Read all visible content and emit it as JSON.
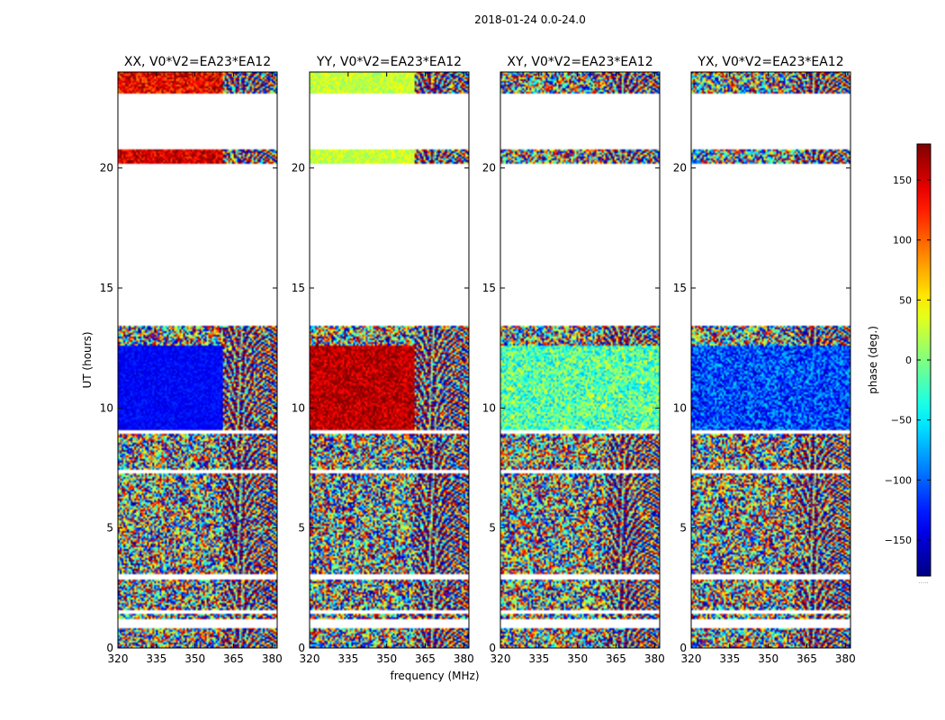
{
  "figure": {
    "suptitle": "2018-01-24 0.0-24.0",
    "xlabel": "frequency (MHz)",
    "ylabel": "UT (hours)",
    "colorbar_label": "phase (deg.)",
    "colorbar_footer": "....."
  },
  "chart_data": {
    "type": "heatmap",
    "colormap": "jet",
    "value_range": [
      -180,
      180
    ],
    "colorbar_ticks": [
      -150,
      -100,
      -50,
      0,
      50,
      100,
      150
    ],
    "colorbar_tick_labels": [
      "−150",
      "−100",
      "−50",
      "0",
      "50",
      "100",
      "150"
    ],
    "x_range": [
      320,
      382
    ],
    "x_ticks": [
      320,
      335,
      350,
      365,
      380
    ],
    "x_tick_labels": [
      "320",
      "335",
      "350",
      "365",
      "380"
    ],
    "y_range": [
      0,
      24
    ],
    "y_ticks": [
      0,
      5,
      10,
      15,
      20
    ],
    "y_tick_labels": [
      "0",
      "5",
      "10",
      "15",
      "20"
    ],
    "no_data_intervals": [
      [
        0.85,
        1.2
      ],
      [
        1.4,
        1.55
      ],
      [
        2.85,
        3.05
      ],
      [
        7.25,
        7.4
      ],
      [
        8.95,
        9.05
      ],
      [
        13.4,
        20.2
      ],
      [
        20.8,
        23.1
      ]
    ],
    "panels": [
      {
        "title": "XX, V0*V2=EA23*EA12",
        "segments": [
          {
            "t": [
              9.0,
              12.6
            ],
            "f": [
              320,
              361
            ],
            "mean": -135,
            "spread": 18,
            "note": "coherent phase, blue"
          },
          {
            "t": [
              20.2,
              20.8
            ],
            "f": [
              320,
              361
            ],
            "mean": 150,
            "spread": 40,
            "note": "coherent phase, red"
          },
          {
            "t": [
              23.1,
              24.0
            ],
            "f": [
              320,
              361
            ],
            "mean": 140,
            "spread": 50,
            "note": "coherent phase, red"
          }
        ]
      },
      {
        "title": "YY, V0*V2=EA23*EA12",
        "segments": [
          {
            "t": [
              9.0,
              12.6
            ],
            "f": [
              320,
              361
            ],
            "mean": 160,
            "spread": 35,
            "note": "coherent phase, dark red"
          },
          {
            "t": [
              20.2,
              20.8
            ],
            "f": [
              320,
              361
            ],
            "mean": 25,
            "spread": 25,
            "note": "coherent phase, yellow-green"
          },
          {
            "t": [
              23.1,
              24.0
            ],
            "f": [
              320,
              361
            ],
            "mean": 25,
            "spread": 25,
            "note": "coherent phase, yellow-green"
          }
        ]
      },
      {
        "title": "XY, V0*V2=EA23*EA12",
        "segments": [
          {
            "t": [
              9.0,
              12.6
            ],
            "f": [
              320,
              382
            ],
            "mean": -15,
            "spread": 60,
            "note": "partially coherent"
          }
        ]
      },
      {
        "title": "YX, V0*V2=EA23*EA12",
        "segments": [
          {
            "t": [
              9.0,
              12.6
            ],
            "f": [
              320,
              382
            ],
            "mean": -110,
            "spread": 55,
            "note": "partially coherent"
          }
        ]
      }
    ]
  }
}
